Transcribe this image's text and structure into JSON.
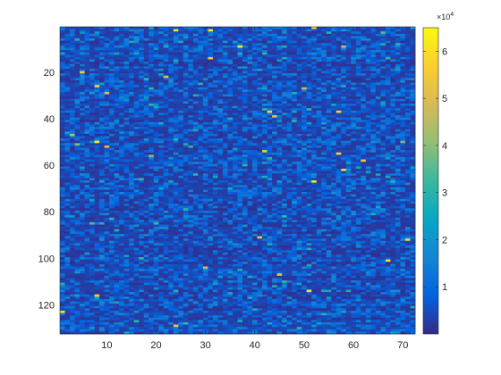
{
  "chart_data": {
    "type": "heatmap",
    "title": "",
    "xlabel": "",
    "ylabel": "",
    "x_range": [
      1,
      72
    ],
    "y_range": [
      1,
      132
    ],
    "y_direction": "reversed",
    "x_ticks": [
      "10",
      "20",
      "30",
      "40",
      "50",
      "60",
      "70"
    ],
    "y_ticks": [
      "20",
      "40",
      "60",
      "80",
      "100",
      "120"
    ],
    "colormap": "parula",
    "colorbar": {
      "range": [
        0,
        65000
      ],
      "exponent_label": "×10",
      "exponent_power": "4",
      "ticks": [
        "1",
        "2",
        "3",
        "4",
        "5",
        "6"
      ]
    },
    "value_distribution": {
      "typical_range": [
        2000,
        15000
      ],
      "outlier_max": 65000
    },
    "notable_cells": [
      {
        "x": 24,
        "y": 2,
        "value": 60000
      },
      {
        "x": 31,
        "y": 2,
        "value": 62000
      },
      {
        "x": 52,
        "y": 1,
        "value": 58000
      },
      {
        "x": 66,
        "y": 3,
        "value": 35000
      },
      {
        "x": 5,
        "y": 20,
        "value": 55000
      },
      {
        "x": 37,
        "y": 9,
        "value": 62000
      },
      {
        "x": 58,
        "y": 9,
        "value": 45000
      },
      {
        "x": 31,
        "y": 14,
        "value": 55000
      },
      {
        "x": 22,
        "y": 22,
        "value": 52000
      },
      {
        "x": 8,
        "y": 26,
        "value": 58000
      },
      {
        "x": 10,
        "y": 29,
        "value": 50000
      },
      {
        "x": 50,
        "y": 27,
        "value": 48000
      },
      {
        "x": 43,
        "y": 37,
        "value": 57000
      },
      {
        "x": 44,
        "y": 39,
        "value": 52000
      },
      {
        "x": 57,
        "y": 37,
        "value": 58000
      },
      {
        "x": 3,
        "y": 47,
        "value": 45000
      },
      {
        "x": 8,
        "y": 50,
        "value": 62000
      },
      {
        "x": 4,
        "y": 51,
        "value": 40000
      },
      {
        "x": 10,
        "y": 52,
        "value": 50000
      },
      {
        "x": 57,
        "y": 55,
        "value": 58000
      },
      {
        "x": 58,
        "y": 62,
        "value": 60000
      },
      {
        "x": 62,
        "y": 58,
        "value": 55000
      },
      {
        "x": 42,
        "y": 54,
        "value": 55000
      },
      {
        "x": 19,
        "y": 56,
        "value": 40000
      },
      {
        "x": 70,
        "y": 50,
        "value": 38000
      },
      {
        "x": 52,
        "y": 67,
        "value": 62000
      },
      {
        "x": 7,
        "y": 85,
        "value": 35000
      },
      {
        "x": 20,
        "y": 85,
        "value": 32000
      },
      {
        "x": 41,
        "y": 91,
        "value": 52000
      },
      {
        "x": 71,
        "y": 92,
        "value": 58000
      },
      {
        "x": 67,
        "y": 101,
        "value": 60000
      },
      {
        "x": 30,
        "y": 104,
        "value": 48000
      },
      {
        "x": 45,
        "y": 107,
        "value": 55000
      },
      {
        "x": 8,
        "y": 116,
        "value": 58000
      },
      {
        "x": 51,
        "y": 114,
        "value": 62000
      },
      {
        "x": 1,
        "y": 123,
        "value": 60000
      },
      {
        "x": 24,
        "y": 129,
        "value": 55000
      }
    ]
  }
}
